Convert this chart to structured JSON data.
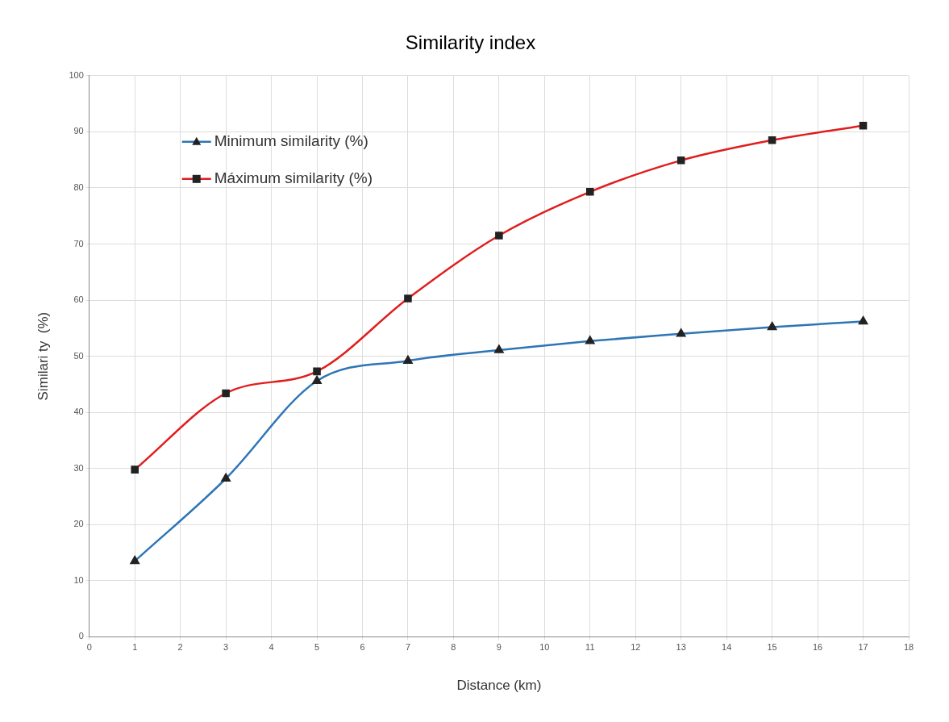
{
  "chart_data": {
    "type": "line",
    "title": "Similarity index",
    "xlabel": "Distance (km)",
    "ylabel": "Similari ty  (%)",
    "series": [
      {
        "name": "Minimum similarity (%)",
        "color": "#2e75b6",
        "marker": "triangle",
        "x": [
          1,
          3,
          5,
          7,
          9,
          11,
          13,
          15,
          17
        ],
        "values": [
          13.5,
          28.2,
          45.6,
          49.2,
          51.1,
          52.7,
          54.0,
          55.2,
          56.2
        ]
      },
      {
        "name": "Máximum similarity (%)",
        "color": "#e01e1e",
        "marker": "square",
        "x": [
          1,
          3,
          5,
          7,
          9,
          11,
          13,
          15,
          17
        ],
        "values": [
          29.8,
          43.4,
          47.3,
          60.3,
          71.5,
          79.3,
          84.9,
          88.5,
          91.1
        ]
      }
    ],
    "xlim": [
      0,
      18
    ],
    "xticks": [
      0,
      1,
      2,
      3,
      4,
      5,
      6,
      7,
      8,
      9,
      10,
      11,
      12,
      13,
      14,
      15,
      16,
      17,
      18
    ],
    "ylim": [
      0,
      100
    ],
    "yticks": [
      0,
      10,
      20,
      30,
      40,
      50,
      60,
      70,
      80,
      90,
      100
    ],
    "grid": true,
    "legend": "top left",
    "line_style": "solid"
  }
}
